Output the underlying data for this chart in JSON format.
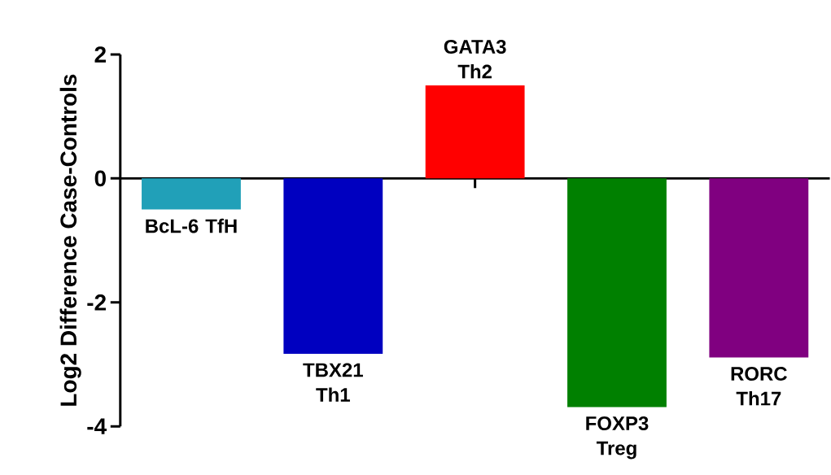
{
  "chart_data": {
    "type": "bar",
    "ylabel": "Log2 Difference Case-Controls",
    "categories": [
      "BcL-6 TfH",
      "TBX21 Th1",
      "GATA3 Th2",
      "FOXP3 Treg",
      "RORC Th17"
    ],
    "values": [
      -0.5,
      -2.83,
      1.5,
      -3.69,
      -2.89
    ],
    "colors": [
      "#21a0b8",
      "#0000c0",
      "#ff0000",
      "#008000",
      "#800080"
    ],
    "ylim": [
      -4,
      2
    ],
    "yticks": [
      -4,
      -2,
      0,
      2
    ]
  }
}
